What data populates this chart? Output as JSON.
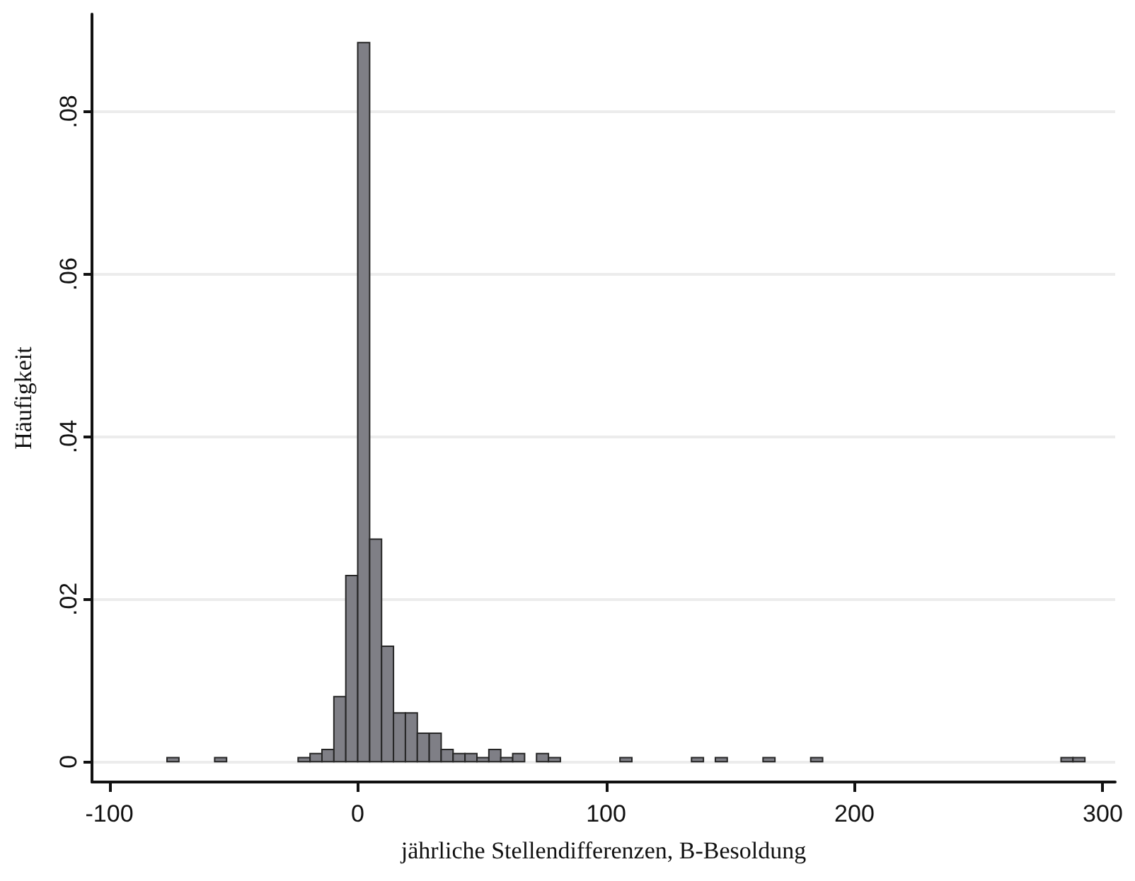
{
  "chart_data": {
    "type": "histogram",
    "xlabel": "jährliche Stellendifferenzen, B-Besoldung",
    "ylabel": "Häufigkeit",
    "bins": [
      -76.8,
      -72,
      -67.2,
      -62.4,
      -57.6,
      -52.8,
      -48,
      -43.2,
      -38.4,
      -33.6,
      -28.8,
      -24,
      -19.2,
      -14.4,
      -9.6,
      -4.8,
      0,
      4.8,
      9.6,
      14.4,
      19.2,
      24,
      28.8,
      33.6,
      38.4,
      43.2,
      48,
      52.8,
      57.6,
      62.4,
      67.2,
      72,
      76.8,
      81.6,
      86.4,
      91.2,
      96,
      100.8,
      105.6,
      110.4,
      115.2,
      120,
      124.8,
      129.6,
      134.4,
      139.2,
      144,
      148.8,
      153.6,
      158.4,
      163.2,
      168,
      172.8,
      177.6,
      182.4,
      187.2,
      192,
      196.8,
      201.6,
      206.4,
      211.2,
      216,
      220.8,
      225.6,
      230.4,
      235.2,
      240,
      244.8,
      249.6,
      254.4,
      259.2,
      264,
      268.8,
      273.6,
      278.4,
      283.2,
      288,
      292.8
    ],
    "values": [
      0.0005,
      0,
      0,
      0,
      0.0005,
      0,
      0,
      0,
      0,
      0,
      0,
      0.0005,
      0.001,
      0.0015,
      0.008,
      0.0229,
      0.0885,
      0.0274,
      0.0142,
      0.006,
      0.006,
      0.0035,
      0.0035,
      0.0015,
      0.001,
      0.001,
      0.0005,
      0.0015,
      0.0005,
      0.001,
      0,
      0.001,
      0.0005,
      0,
      0,
      0,
      0,
      0,
      0.0005,
      0,
      0,
      0,
      0,
      0,
      0.0005,
      0,
      0.0005,
      0,
      0,
      0,
      0.0005,
      0,
      0,
      0,
      0.0005,
      0,
      0,
      0,
      0,
      0,
      0,
      0,
      0,
      0,
      0,
      0,
      0,
      0,
      0,
      0,
      0,
      0,
      0,
      0,
      0,
      0.0005,
      0.0005
    ],
    "color": "#7f7f86",
    "xlim": [
      -107,
      305
    ],
    "xticks": [
      -100,
      0,
      100,
      200,
      300
    ],
    "ylim": [
      -0.0025,
      0.092
    ],
    "yticks": [
      0,
      {
        "value": 0.02,
        "label": ".02"
      },
      {
        "value": 0.04,
        "label": ".04"
      },
      {
        "value": 0.06,
        "label": ".06"
      },
      {
        "value": 0.08,
        "label": ".08"
      }
    ],
    "grid": "y"
  }
}
